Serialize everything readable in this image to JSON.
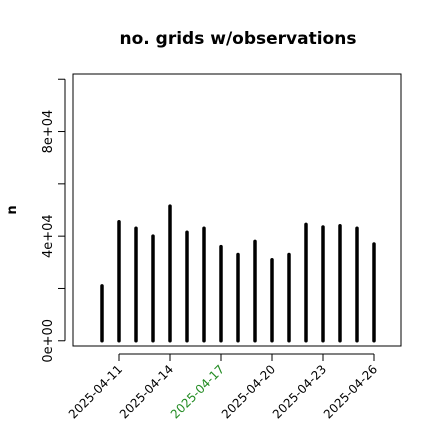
{
  "chart_data": {
    "type": "bar",
    "title": "no. grids w/observations",
    "ylabel": "n",
    "xlabel": "",
    "ylim": [
      -2000,
      102000
    ],
    "yticks": [
      {
        "value": 0,
        "label": "0e+00"
      },
      {
        "value": 20000,
        "label": ""
      },
      {
        "value": 40000,
        "label": "4e+04"
      },
      {
        "value": 60000,
        "label": ""
      },
      {
        "value": 80000,
        "label": "8e+04"
      },
      {
        "value": 100000,
        "label": ""
      }
    ],
    "x": [
      "2025-04-10",
      "2025-04-11",
      "2025-04-12",
      "2025-04-13",
      "2025-04-14",
      "2025-04-15",
      "2025-04-16",
      "2025-04-17",
      "2025-04-18",
      "2025-04-19",
      "2025-04-20",
      "2025-04-21",
      "2025-04-22",
      "2025-04-23",
      "2025-04-24",
      "2025-04-25",
      "2025-04-26"
    ],
    "values": [
      21000,
      45500,
      43000,
      40000,
      51500,
      41500,
      43000,
      36000,
      33000,
      38000,
      31000,
      33000,
      44500,
      43500,
      44000,
      43000,
      37000
    ],
    "xticks": [
      {
        "label": "2025-04-11",
        "color": "#000000"
      },
      {
        "label": "2025-04-14",
        "color": "#000000"
      },
      {
        "label": "2025-04-17",
        "color": "#228B22"
      },
      {
        "label": "2025-04-20",
        "color": "#000000"
      },
      {
        "label": "2025-04-23",
        "color": "#000000"
      },
      {
        "label": "2025-04-26",
        "color": "#000000"
      }
    ],
    "bar_color": "#000000",
    "grid": false
  }
}
